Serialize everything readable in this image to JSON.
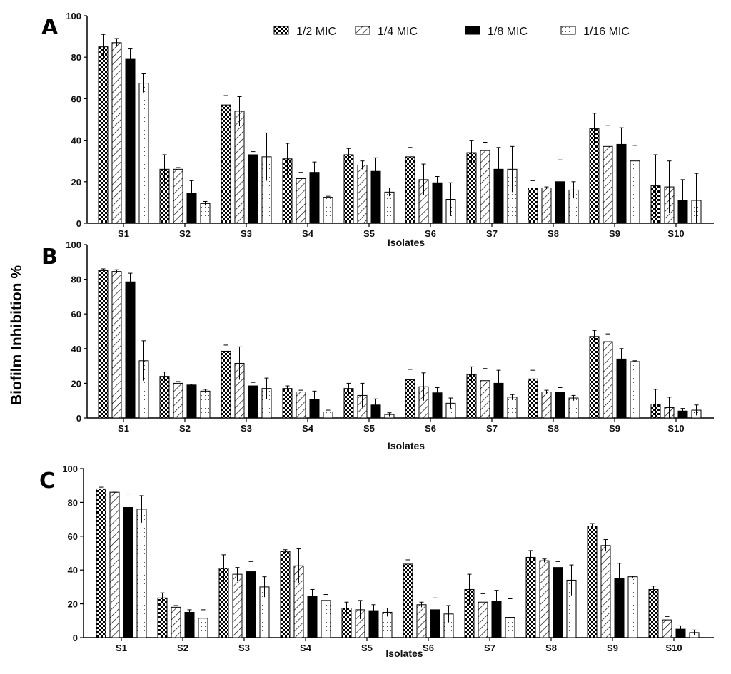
{
  "ylabel": "Biofilm Inhibition %",
  "legend": [
    {
      "name": "1/2 MIC",
      "pattern": "checker"
    },
    {
      "name": "1/4 MIC",
      "pattern": "hatch"
    },
    {
      "name": "1/8 MIC",
      "pattern": "solid"
    },
    {
      "name": "1/16 MIC",
      "pattern": "dots"
    }
  ],
  "colors": {
    "bar_stroke": "#000000",
    "solid": "#000000",
    "background": "#ffffff"
  },
  "chart_data": [
    {
      "type": "bar",
      "panel": "A",
      "xlabel": "Isolates",
      "ylim": [
        0,
        100
      ],
      "yticks": [
        0,
        20,
        40,
        60,
        80,
        100
      ],
      "legend_position": "top-right",
      "grid": false,
      "categories": [
        "S1",
        "S2",
        "S3",
        "S4",
        "S5",
        "S6",
        "S7",
        "S8",
        "S9",
        "S10"
      ],
      "series": [
        {
          "name": "1/2 MIC",
          "values": [
            85,
            26,
            57,
            31,
            33,
            32,
            34,
            17,
            45.5,
            18
          ],
          "errors": [
            6,
            7,
            4.5,
            7.5,
            3,
            4.5,
            6,
            3.5,
            7.5,
            15
          ]
        },
        {
          "name": "1/4 MIC",
          "values": [
            87,
            26,
            54,
            21.5,
            28,
            21,
            35,
            17,
            37,
            17.5
          ],
          "errors": [
            2,
            0.8,
            7,
            3,
            2,
            7.5,
            4,
            0.5,
            10,
            12.5
          ]
        },
        {
          "name": "1/8 MIC",
          "values": [
            79,
            14.5,
            33,
            24.5,
            25,
            19.5,
            26,
            20,
            38,
            11
          ],
          "errors": [
            5,
            6,
            1.5,
            5,
            6.5,
            3,
            10.5,
            10.5,
            8,
            10
          ]
        },
        {
          "name": "1/16 MIC",
          "values": [
            67.5,
            9.5,
            32,
            12.5,
            15,
            11.5,
            26,
            16,
            30,
            11
          ],
          "errors": [
            4.5,
            1,
            11.5,
            0.5,
            2,
            8,
            11,
            4,
            7.5,
            13
          ]
        }
      ]
    },
    {
      "type": "bar",
      "panel": "B",
      "xlabel": "Isolates",
      "ylim": [
        0,
        100
      ],
      "yticks": [
        0,
        20,
        40,
        60,
        80,
        100
      ],
      "grid": false,
      "categories": [
        "S1",
        "S2",
        "S3",
        "S4",
        "S5",
        "S6",
        "S7",
        "S8",
        "S9",
        "S10"
      ],
      "series": [
        {
          "name": "1/2 MIC",
          "values": [
            85,
            24,
            38.5,
            17,
            17,
            22,
            25,
            22.5,
            47,
            8
          ],
          "errors": [
            1,
            2.5,
            3.5,
            1.5,
            3,
            6,
            4.5,
            5,
            3.5,
            8.5
          ]
        },
        {
          "name": "1/4 MIC",
          "values": [
            84.5,
            20,
            31.5,
            15,
            13,
            18,
            21.5,
            15,
            44,
            6
          ],
          "errors": [
            1,
            1,
            9.5,
            1,
            7,
            8,
            7,
            1,
            4.5,
            6
          ]
        },
        {
          "name": "1/8 MIC",
          "values": [
            78.5,
            19,
            18.5,
            10.5,
            7.5,
            14.5,
            20,
            15,
            34,
            4
          ],
          "errors": [
            5,
            0.5,
            2,
            5,
            3.5,
            3,
            7.5,
            2.5,
            6,
            1.5
          ]
        },
        {
          "name": "1/16 MIC",
          "values": [
            33,
            15.5,
            17,
            3.5,
            2,
            8.5,
            12,
            11.5,
            32.5,
            4.5
          ],
          "errors": [
            11.5,
            1,
            6,
            1,
            1,
            3,
            1.5,
            1.5,
            0.5,
            3
          ]
        }
      ]
    },
    {
      "type": "bar",
      "panel": "C",
      "xlabel": "Isolates",
      "ylim": [
        0,
        100
      ],
      "yticks": [
        0,
        20,
        40,
        60,
        80,
        100
      ],
      "grid": false,
      "categories": [
        "S1",
        "S2",
        "S3",
        "S4",
        "S5",
        "S6",
        "S7",
        "S8",
        "S9",
        "S10"
      ],
      "series": [
        {
          "name": "1/2 MIC",
          "values": [
            88,
            23.5,
            41,
            51,
            17.5,
            43.5,
            28.5,
            47.5,
            66,
            28.5
          ],
          "errors": [
            1,
            3,
            8,
            1,
            3.5,
            2.5,
            9,
            4,
            1.5,
            2
          ]
        },
        {
          "name": "1/4 MIC",
          "values": [
            86,
            18,
            37.5,
            42.5,
            16.5,
            19.5,
            21,
            45.5,
            54.5,
            10.5
          ],
          "errors": [
            0,
            1,
            4,
            10,
            5.5,
            1.5,
            5,
            1,
            3.5,
            2
          ]
        },
        {
          "name": "1/8 MIC",
          "values": [
            77,
            15,
            39,
            24.5,
            16,
            16.5,
            21.5,
            41.5,
            35,
            5
          ],
          "errors": [
            8,
            1.5,
            6,
            4,
            3.5,
            7,
            6.5,
            3.5,
            9,
            2
          ]
        },
        {
          "name": "1/16 MIC",
          "values": [
            76,
            11.5,
            30,
            22,
            15,
            14,
            12,
            34,
            36,
            3
          ],
          "errors": [
            8,
            5,
            6,
            3.5,
            2.5,
            5,
            11,
            9,
            0.5,
            1.5
          ]
        }
      ]
    }
  ]
}
